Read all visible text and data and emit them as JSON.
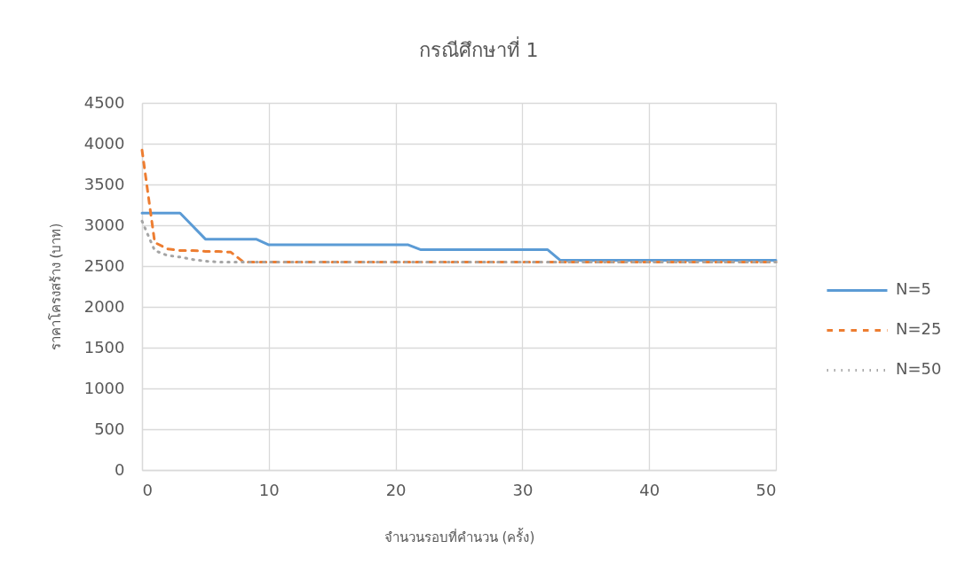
{
  "chart_data": {
    "type": "line",
    "title": "กรณีศึกษาที่ 1",
    "xlabel": "จำนวนรอบที่คำนวน (ครั้ง)",
    "ylabel": "ราคาโครงสร้าง (บาท)",
    "xlim": [
      0,
      50
    ],
    "xticks": [
      0,
      10,
      20,
      30,
      40,
      50
    ],
    "ylim": [
      0,
      4500
    ],
    "yticks": [
      0,
      500,
      1000,
      1500,
      2000,
      2500,
      3000,
      3500,
      4000,
      4500
    ],
    "grid": true,
    "legend": "right",
    "series": [
      {
        "name": "N=5",
        "color": "#5b9bd5",
        "line_style": "solid",
        "x": [
          0,
          3,
          5,
          9,
          10,
          21,
          22,
          32,
          33,
          50
        ],
        "values": [
          3150,
          3150,
          2830,
          2830,
          2760,
          2760,
          2700,
          2700,
          2570,
          2570
        ]
      },
      {
        "name": "N=25",
        "color": "#ed7d31",
        "line_style": "dashed",
        "x": [
          0,
          1,
          2,
          3,
          4,
          5,
          6,
          7,
          8,
          50
        ],
        "values": [
          3920,
          2790,
          2710,
          2690,
          2690,
          2680,
          2680,
          2670,
          2550,
          2550
        ]
      },
      {
        "name": "N=50",
        "color": "#a5a5a5",
        "line_style": "dotted",
        "x": [
          0,
          1,
          2,
          3,
          4,
          5,
          6,
          50
        ],
        "values": [
          3050,
          2690,
          2630,
          2610,
          2580,
          2560,
          2550,
          2550
        ]
      }
    ]
  }
}
